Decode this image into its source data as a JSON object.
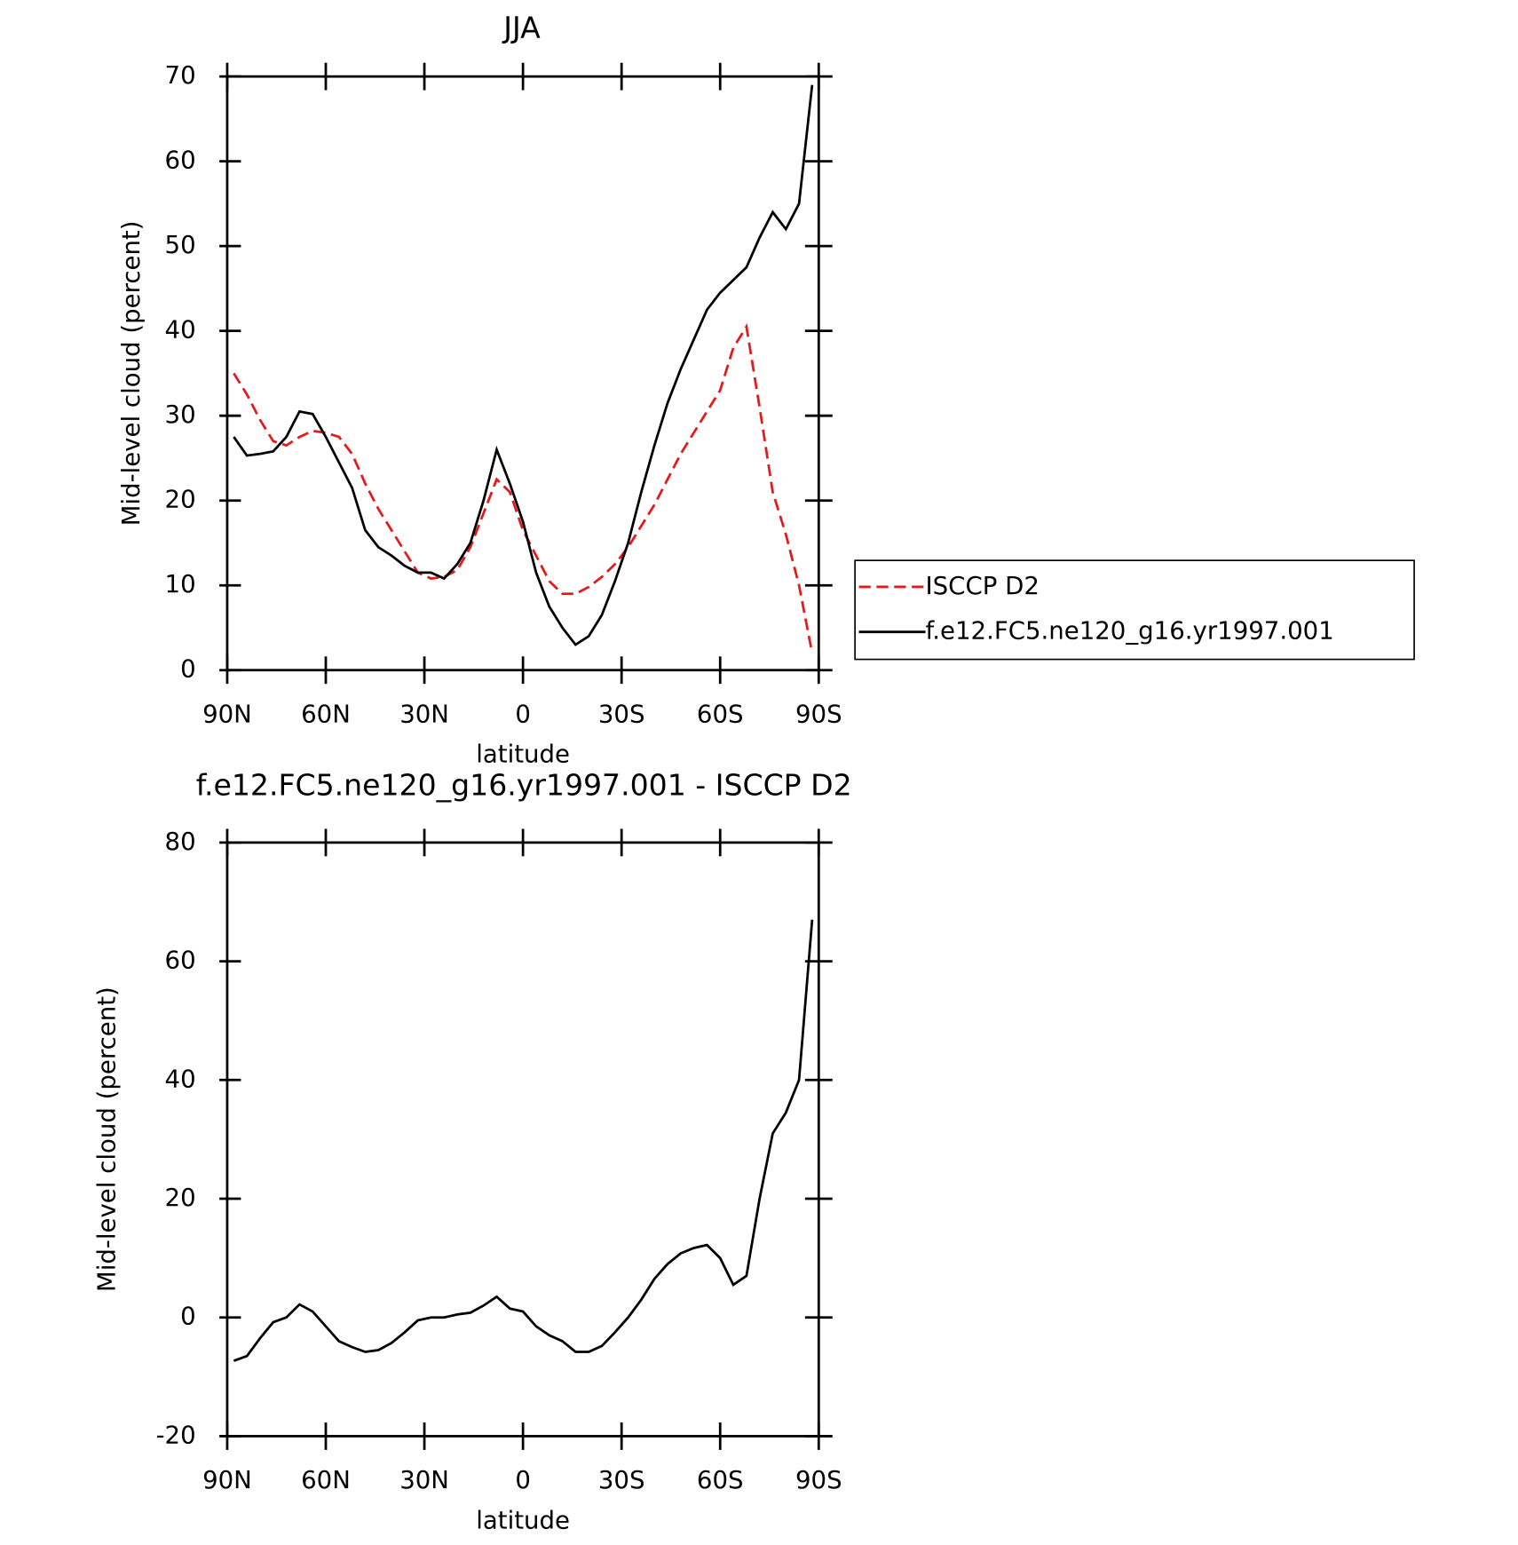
{
  "chart_data": [
    {
      "type": "line",
      "title": "JJA",
      "xlabel": "latitude",
      "ylabel": "Mid-level cloud (percent)",
      "x": [
        88,
        84,
        80,
        76,
        72,
        68,
        64,
        60,
        56,
        52,
        48,
        44,
        40,
        36,
        32,
        28,
        24,
        20,
        16,
        12,
        8,
        4,
        0,
        -4,
        -8,
        -12,
        -16,
        -20,
        -24,
        -28,
        -32,
        -36,
        -40,
        -44,
        -48,
        -52,
        -56,
        -60,
        -64,
        -68,
        -72,
        -76,
        -80,
        -84,
        -88
      ],
      "series": [
        {
          "name": "ISCCP D2",
          "color": "#e31a1c",
          "dash": true,
          "values": [
            35,
            32.5,
            29.5,
            27,
            26.5,
            27.5,
            28.2,
            28,
            27.5,
            25.5,
            22,
            19,
            16.5,
            14,
            11.5,
            10.8,
            11,
            11.8,
            14.5,
            18.5,
            22.5,
            21,
            16.5,
            13.5,
            10.5,
            9,
            9,
            9.8,
            11,
            12.5,
            14.5,
            17,
            19.5,
            22.5,
            25.5,
            28,
            30.5,
            33,
            38,
            40.5,
            31,
            21,
            16,
            10,
            2
          ]
        },
        {
          "name": "f.e12.FC5.ne120_g16.yr1997.001",
          "color": "#000000",
          "dash": false,
          "values": [
            27.5,
            25.3,
            25.5,
            25.8,
            27.5,
            30.5,
            30.2,
            27.5,
            24.5,
            21.5,
            16.5,
            14.5,
            13.5,
            12.3,
            11.5,
            11.5,
            10.8,
            12.5,
            15,
            20,
            26,
            22,
            17.5,
            11.5,
            7.5,
            5,
            3,
            4,
            6.5,
            10.5,
            15,
            21,
            26.5,
            31.5,
            35.5,
            39,
            42.5,
            44.5,
            46,
            47.5,
            51,
            54,
            52,
            55,
            69
          ]
        }
      ],
      "xlim": [
        90,
        -90
      ],
      "xticks": [
        {
          "value": 90,
          "label": "90N"
        },
        {
          "value": 60,
          "label": "60N"
        },
        {
          "value": 30,
          "label": "30N"
        },
        0,
        {
          "value": -30,
          "label": "30S"
        },
        {
          "value": -60,
          "label": "60S"
        },
        {
          "value": -90,
          "label": "90S"
        }
      ],
      "ylim": [
        0,
        70
      ],
      "yticks": [
        0,
        10,
        20,
        30,
        40,
        50,
        60,
        70
      ],
      "legend": "right"
    },
    {
      "type": "line",
      "title": "f.e12.FC5.ne120_g16.yr1997.001 - ISCCP D2",
      "xlabel": "latitude",
      "ylabel": "Mid-level cloud (percent)",
      "x": [
        88,
        84,
        80,
        76,
        72,
        68,
        64,
        60,
        56,
        52,
        48,
        44,
        40,
        36,
        32,
        28,
        24,
        20,
        16,
        12,
        8,
        4,
        0,
        -4,
        -8,
        -12,
        -16,
        -20,
        -24,
        -28,
        -32,
        -36,
        -40,
        -44,
        -48,
        -52,
        -56,
        -60,
        -64,
        -68,
        -72,
        -76,
        -80,
        -84,
        -88
      ],
      "series": [
        {
          "color": "#000000",
          "dash": false,
          "values": [
            -7.3,
            -6.5,
            -3.5,
            -0.8,
            0,
            2.2,
            1,
            -1.5,
            -4,
            -5,
            -5.8,
            -5.5,
            -4.3,
            -2.5,
            -0.5,
            0,
            0,
            0.5,
            0.8,
            2,
            3.5,
            1.5,
            1,
            -1.5,
            -3,
            -4,
            -5.8,
            -5.8,
            -4.8,
            -2.5,
            0,
            3,
            6.5,
            9,
            10.8,
            11.7,
            12.2,
            10,
            5.5,
            7,
            20,
            31,
            34.5,
            40,
            67
          ]
        }
      ],
      "xlim": [
        90,
        -90
      ],
      "xticks": [
        {
          "value": 90,
          "label": "90N"
        },
        {
          "value": 60,
          "label": "60N"
        },
        {
          "value": 30,
          "label": "30N"
        },
        0,
        {
          "value": -30,
          "label": "30S"
        },
        {
          "value": -60,
          "label": "60S"
        },
        {
          "value": -90,
          "label": "90S"
        }
      ],
      "ylim": [
        -20,
        80
      ],
      "yticks": [
        -20,
        0,
        20,
        40,
        60,
        80
      ]
    }
  ]
}
